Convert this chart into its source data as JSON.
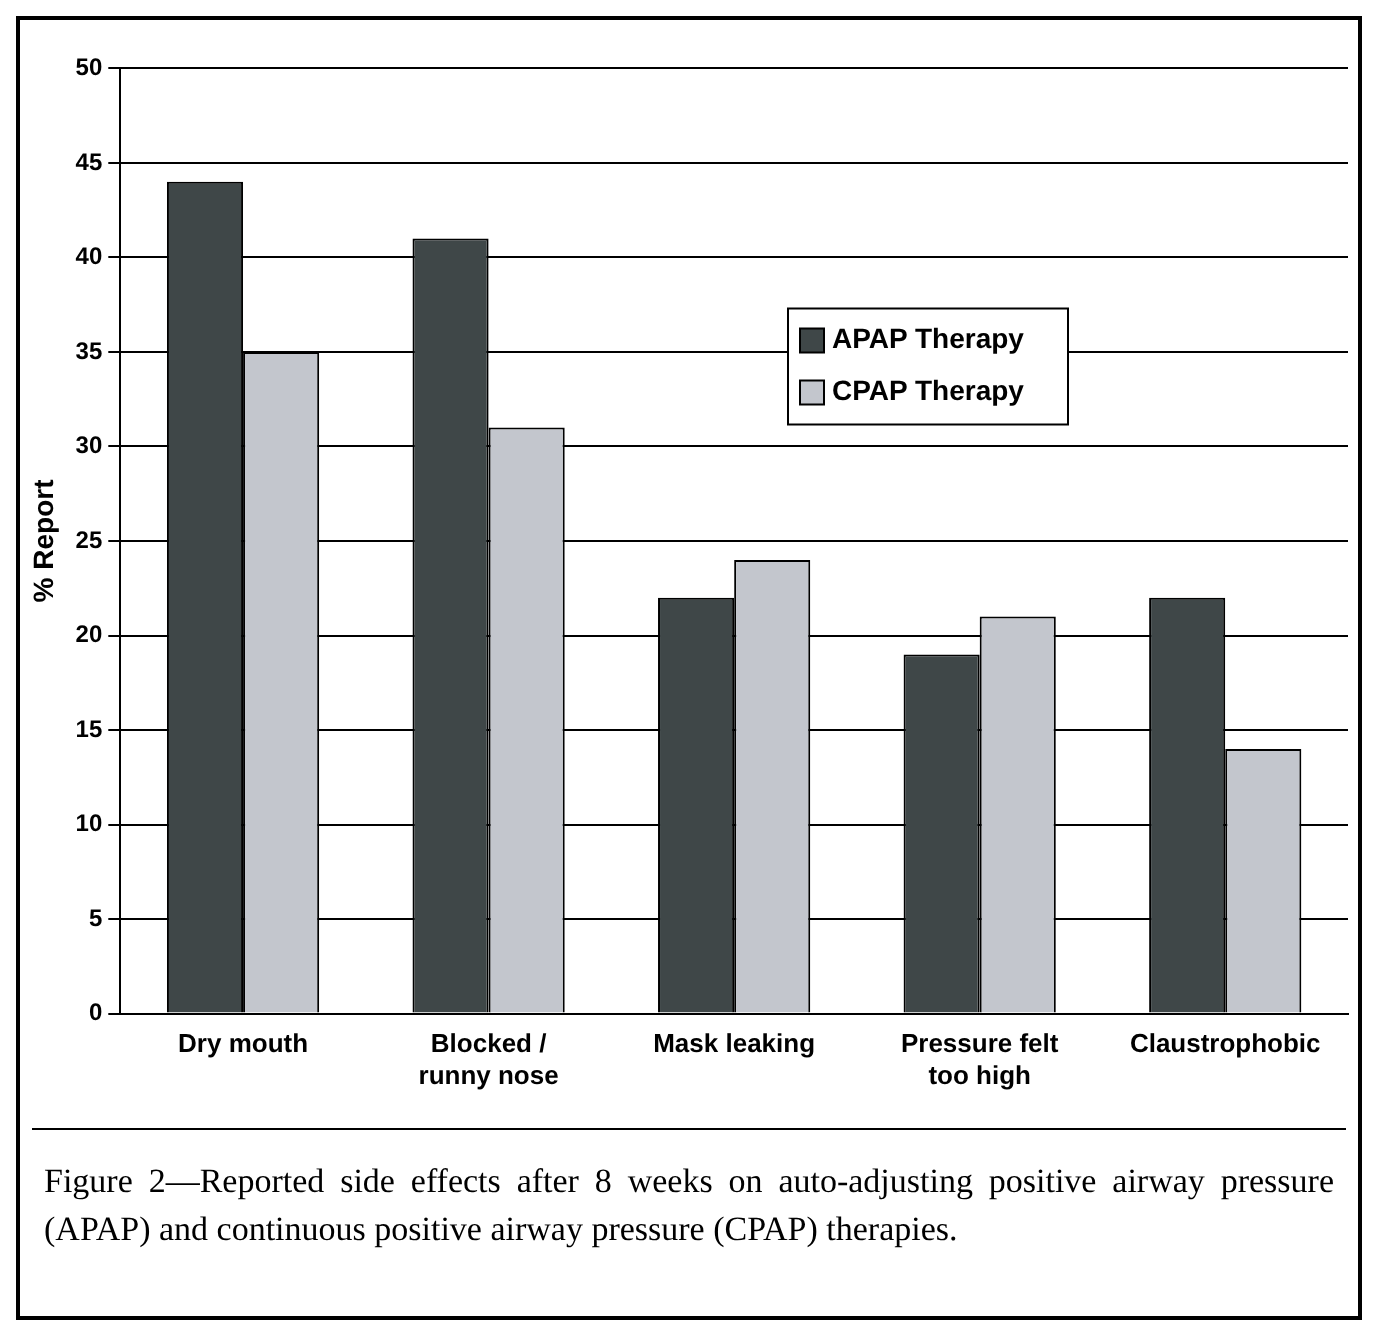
{
  "chart_data": {
    "type": "bar",
    "ylabel": "% Report",
    "categories": [
      "Dry mouth",
      "Blocked / runny nose",
      "Mask leaking",
      "Pressure felt too high",
      "Claustrophobic"
    ],
    "series": [
      {
        "name": "APAP Therapy",
        "color": "#3f4748",
        "values": [
          44,
          41,
          22,
          19,
          22
        ]
      },
      {
        "name": "CPAP Therapy",
        "color": "#c3c6cd",
        "values": [
          35,
          31,
          24,
          21,
          14
        ]
      }
    ],
    "ylim": [
      0,
      50
    ],
    "yticks": [
      0,
      5,
      10,
      15,
      20,
      25,
      30,
      35,
      40,
      45,
      50
    ],
    "grid": "y",
    "legend": "top right",
    "annotations": [
      "Figure 2—Reported side effects after 8 weeks on auto-adjusting positive airway pressure (APAP) and continuous positive airway pressure (CPAP) therapies."
    ]
  }
}
